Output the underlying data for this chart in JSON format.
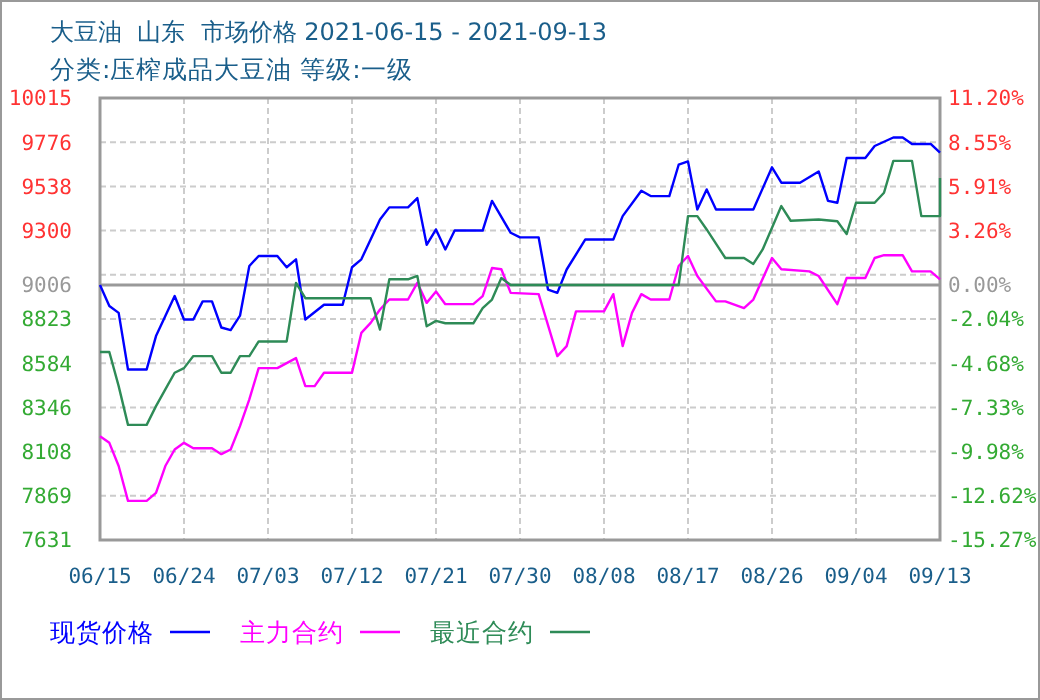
{
  "chart_data": {
    "type": "line",
    "title": "大豆油  山东  市场价格 2021-06-15 - 2021-09-13",
    "subtitle": "分类:压榨成品大豆油 等级:一级",
    "xlim": [
      "2021-06-15",
      "2021-09-13"
    ],
    "xticks": [
      {
        "value": "2021-06-15",
        "label": "06/15"
      },
      {
        "value": "2021-06-24",
        "label": "06/24"
      },
      {
        "value": "2021-07-03",
        "label": "07/03"
      },
      {
        "value": "2021-07-12",
        "label": "07/12"
      },
      {
        "value": "2021-07-21",
        "label": "07/21"
      },
      {
        "value": "2021-07-30",
        "label": "07/30"
      },
      {
        "value": "2021-08-08",
        "label": "08/08"
      },
      {
        "value": "2021-08-17",
        "label": "08/17"
      },
      {
        "value": "2021-08-26",
        "label": "08/26"
      },
      {
        "value": "2021-09-04",
        "label": "09/04"
      },
      {
        "value": "2021-09-13",
        "label": "09/13"
      }
    ],
    "ylim": [
      7631,
      10015
    ],
    "yticks": [
      10015,
      9776,
      9538,
      9300,
      {
        "value": 9062,
        "label": null
      },
      9006,
      8823,
      8584,
      8346,
      8108,
      7869,
      7631
    ],
    "y2lim": [
      -15.27,
      11.2
    ],
    "y2ticks": [
      {
        "value": 11.2,
        "label": "11.20%"
      },
      {
        "value": 8.55,
        "label": "8.55%"
      },
      {
        "value": 5.91,
        "label": "5.91%"
      },
      {
        "value": 3.26,
        "label": "3.26%"
      },
      {
        "value": 0,
        "label": "0.00%"
      },
      {
        "value": -2.04,
        "label": "-2.04%"
      },
      {
        "value": -4.68,
        "label": "-4.68%"
      },
      {
        "value": -7.33,
        "label": "-7.33%"
      },
      {
        "value": -9.98,
        "label": "-9.98%"
      },
      {
        "value": -12.62,
        "label": "-12.62%"
      },
      {
        "value": -15.27,
        "label": "-15.27%"
      }
    ],
    "grid": true,
    "legend": "bottom",
    "line_style": "solid",
    "ref_lines": [
      {
        "axis": "y",
        "value": 9006,
        "color": "#999999"
      }
    ],
    "series": [
      {
        "name": "现货价格",
        "color": "#0000ff",
        "x": [
          "2021-06-15",
          "2021-06-16",
          "2021-06-17",
          "2021-06-18",
          "2021-06-20",
          "2021-06-21",
          "2021-06-23",
          "2021-06-24",
          "2021-06-25",
          "2021-06-26",
          "2021-06-27",
          "2021-06-28",
          "2021-06-29",
          "2021-06-30",
          "2021-07-01",
          "2021-07-02",
          "2021-07-04",
          "2021-07-05",
          "2021-07-06",
          "2021-07-07",
          "2021-07-09",
          "2021-07-11",
          "2021-07-12",
          "2021-07-13",
          "2021-07-15",
          "2021-07-16",
          "2021-07-18",
          "2021-07-19",
          "2021-07-20",
          "2021-07-21",
          "2021-07-22",
          "2021-07-23",
          "2021-07-26",
          "2021-07-27",
          "2021-07-29",
          "2021-07-30",
          "2021-08-01",
          "2021-08-02",
          "2021-08-03",
          "2021-08-04",
          "2021-08-06",
          "2021-08-09",
          "2021-08-10",
          "2021-08-12",
          "2021-08-13",
          "2021-08-15",
          "2021-08-16",
          "2021-08-17",
          "2021-08-18",
          "2021-08-19",
          "2021-08-20",
          "2021-08-24",
          "2021-08-26",
          "2021-08-27",
          "2021-08-29",
          "2021-08-31",
          "2021-09-01",
          "2021-09-02",
          "2021-09-03",
          "2021-09-05",
          "2021-09-06",
          "2021-09-08",
          "2021-09-09",
          "2021-09-10",
          "2021-09-12",
          "2021-09-13"
        ],
        "values": [
          9006,
          8893,
          8856,
          8551,
          8551,
          8731,
          8947,
          8820,
          8820,
          8918,
          8918,
          8777,
          8763,
          8841,
          9109,
          9163,
          9163,
          9102,
          9145,
          8820,
          8900,
          8900,
          9102,
          9145,
          9360,
          9425,
          9425,
          9475,
          9223,
          9306,
          9198,
          9300,
          9300,
          9460,
          9288,
          9263,
          9263,
          8982,
          8964,
          9090,
          9252,
          9252,
          9378,
          9515,
          9486,
          9486,
          9655,
          9673,
          9414,
          9522,
          9414,
          9414,
          9641,
          9558,
          9558,
          9619,
          9460,
          9450,
          9691,
          9691,
          9756,
          9802,
          9802,
          9767,
          9767,
          9720
        ]
      },
      {
        "name": "主力合约",
        "color": "#ff00ff",
        "x": [
          "2021-06-15",
          "2021-06-16",
          "2021-06-17",
          "2021-06-18",
          "2021-06-20",
          "2021-06-21",
          "2021-06-22",
          "2021-06-23",
          "2021-06-24",
          "2021-06-25",
          "2021-06-27",
          "2021-06-28",
          "2021-06-29",
          "2021-06-30",
          "2021-07-01",
          "2021-07-02",
          "2021-07-04",
          "2021-07-06",
          "2021-07-07",
          "2021-07-08",
          "2021-07-09",
          "2021-07-12",
          "2021-07-13",
          "2021-07-14",
          "2021-07-15",
          "2021-07-16",
          "2021-07-18",
          "2021-07-19",
          "2021-07-20",
          "2021-07-21",
          "2021-07-22",
          "2021-07-25",
          "2021-07-26",
          "2021-07-27",
          "2021-07-28",
          "2021-07-29",
          "2021-08-01",
          "2021-08-03",
          "2021-08-04",
          "2021-08-05",
          "2021-08-08",
          "2021-08-09",
          "2021-08-10",
          "2021-08-11",
          "2021-08-12",
          "2021-08-13",
          "2021-08-15",
          "2021-08-16",
          "2021-08-17",
          "2021-08-18",
          "2021-08-20",
          "2021-08-21",
          "2021-08-23",
          "2021-08-24",
          "2021-08-26",
          "2021-08-27",
          "2021-08-30",
          "2021-08-31",
          "2021-09-02",
          "2021-09-03",
          "2021-09-05",
          "2021-09-06",
          "2021-09-07",
          "2021-09-09",
          "2021-09-10",
          "2021-09-12",
          "2021-09-13"
        ],
        "values": [
          8191,
          8155,
          8030,
          7842,
          7842,
          7885,
          8030,
          8119,
          8155,
          8126,
          8126,
          8094,
          8119,
          8245,
          8389,
          8558,
          8558,
          8612,
          8461,
          8461,
          8533,
          8533,
          8748,
          8802,
          8874,
          8928,
          8928,
          9018,
          8910,
          8971,
          8903,
          8903,
          8946,
          9098,
          9091,
          8964,
          8957,
          8623,
          8677,
          8864,
          8864,
          8957,
          8677,
          8856,
          8957,
          8928,
          8928,
          9109,
          9163,
          9055,
          8918,
          8918,
          8882,
          8928,
          9152,
          9091,
          9080,
          9055,
          8903,
          9044,
          9044,
          9152,
          9167,
          9167,
          9080,
          9080,
          9037
        ]
      },
      {
        "name": "最近合约",
        "color": "#2e8b57",
        "x": [
          "2021-06-15",
          "2021-06-16",
          "2021-06-17",
          "2021-06-18",
          "2021-06-20",
          "2021-06-21",
          "2021-06-22",
          "2021-06-23",
          "2021-06-24",
          "2021-06-25",
          "2021-06-27",
          "2021-06-28",
          "2021-06-29",
          "2021-06-30",
          "2021-07-01",
          "2021-07-02",
          "2021-07-05",
          "2021-07-06",
          "2021-07-07",
          "2021-07-14",
          "2021-07-15",
          "2021-07-16",
          "2021-07-18",
          "2021-07-19",
          "2021-07-20",
          "2021-07-21",
          "2021-07-22",
          "2021-07-25",
          "2021-07-26",
          "2021-07-27",
          "2021-07-28",
          "2021-07-29",
          "2021-08-16",
          "2021-08-17",
          "2021-08-18",
          "2021-08-19",
          "2021-08-21",
          "2021-08-23",
          "2021-08-24",
          "2021-08-25",
          "2021-08-27",
          "2021-08-28",
          "2021-08-31",
          "2021-09-02",
          "2021-09-03",
          "2021-09-04",
          "2021-09-06",
          "2021-09-07",
          "2021-09-08",
          "2021-09-10",
          "2021-09-11",
          "2021-09-13",
          "2021-09-13"
        ],
        "values": [
          8645,
          8645,
          8461,
          8252,
          8252,
          8353,
          8443,
          8533,
          8558,
          8623,
          8623,
          8533,
          8533,
          8623,
          8623,
          8702,
          8702,
          9018,
          8935,
          8935,
          8766,
          9037,
          9037,
          9055,
          8784,
          8813,
          8800,
          8800,
          8882,
          8928,
          9044,
          9006,
          9006,
          9378,
          9378,
          9306,
          9152,
          9152,
          9120,
          9198,
          9432,
          9353,
          9360,
          9350,
          9281,
          9450,
          9450,
          9504,
          9676,
          9676,
          9378,
          9378,
          9583
        ]
      }
    ]
  }
}
